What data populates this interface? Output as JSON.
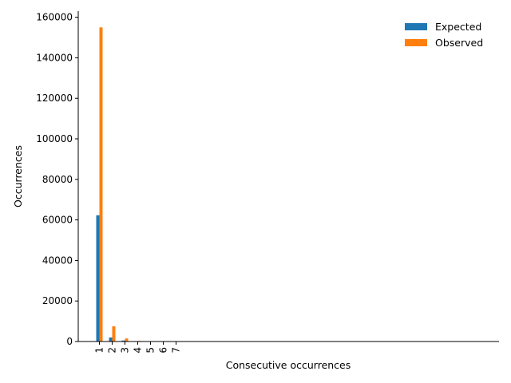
{
  "chart_data": {
    "type": "bar",
    "title": "",
    "xlabel": "Consecutive occurrences",
    "ylabel": "Occurrences",
    "categories": [
      "1",
      "2",
      "3",
      "4",
      "5",
      "6",
      "7"
    ],
    "ylim": [
      0,
      163000
    ],
    "yticks": [
      0,
      20000,
      40000,
      60000,
      80000,
      100000,
      120000,
      140000,
      160000
    ],
    "grid": false,
    "legend_position": "top-right",
    "series": [
      {
        "name": "Expected",
        "color": "#1f77b4",
        "values": [
          62300,
          2000,
          500,
          150,
          50,
          15,
          5
        ]
      },
      {
        "name": "Observed",
        "color": "#ff7f0e",
        "values": [
          155000,
          7500,
          1500,
          300,
          80,
          20,
          5
        ]
      }
    ]
  }
}
